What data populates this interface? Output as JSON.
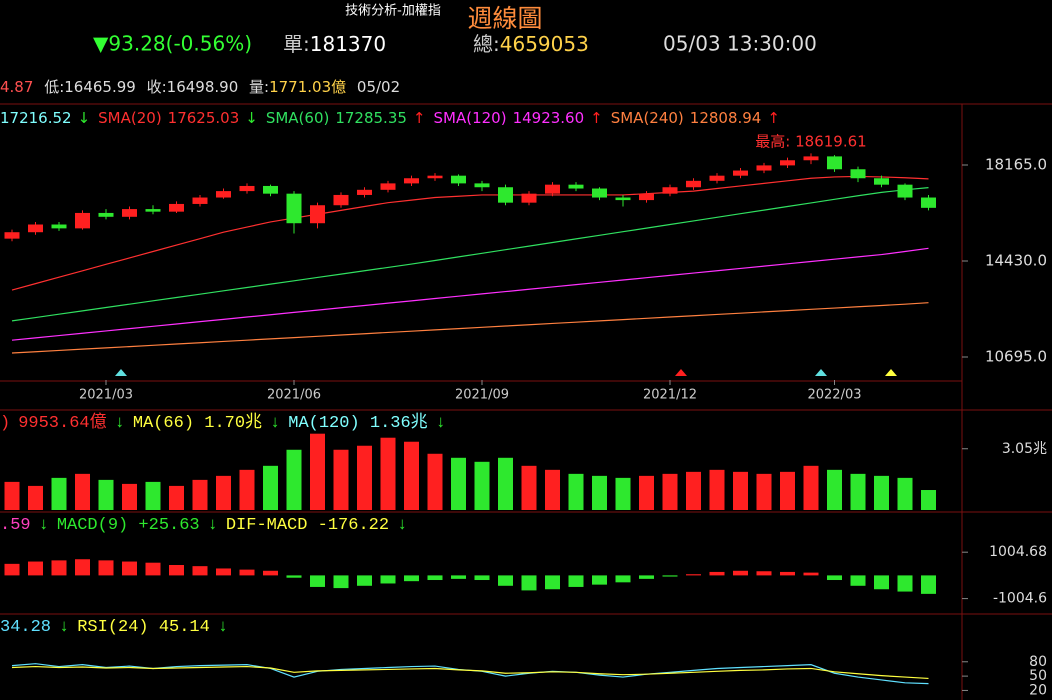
{
  "header": {
    "subtitle": "技術分析-加權指",
    "title": "週線圖",
    "change": "▼93.28(-0.56%)",
    "unit_label": "單:",
    "unit": "181370",
    "total_label": "總:",
    "total": "4659053",
    "datetime": "05/03 13:30:00"
  },
  "quote": {
    "high_partial": "4.87",
    "low_label": "低:",
    "low": "16465.99",
    "close_label": "收:",
    "close": "16498.90",
    "amount_label": "量:",
    "amount": "1771.03億",
    "date": "05/02"
  },
  "chart_data": [
    {
      "type": "candlestick",
      "categories": [
        null,
        null,
        null,
        null,
        "2021/03",
        null,
        null,
        null,
        null,
        null,
        null,
        null,
        "2021/06",
        null,
        null,
        null,
        null,
        null,
        null,
        null,
        "2021/09",
        null,
        null,
        null,
        null,
        null,
        null,
        null,
        "2021/12",
        null,
        null,
        null,
        null,
        null,
        null,
        "2022/03",
        null,
        null,
        null,
        null
      ],
      "open": [
        15300,
        15550,
        15850,
        15700,
        16300,
        16150,
        16450,
        16350,
        16650,
        16900,
        17150,
        17350,
        17050,
        15900,
        16600,
        17000,
        17200,
        17450,
        17650,
        17750,
        17450,
        17300,
        16700,
        17050,
        17400,
        17250,
        16900,
        16800,
        17050,
        17300,
        17550,
        17750,
        17950,
        18150,
        18350,
        18500,
        18000,
        17650,
        17400,
        16900
      ],
      "high": [
        15650,
        15950,
        15950,
        16400,
        16450,
        16550,
        16600,
        16750,
        17000,
        17250,
        17450,
        17400,
        17150,
        16700,
        17100,
        17300,
        17550,
        17750,
        17850,
        17800,
        17550,
        17400,
        17150,
        17500,
        17500,
        17300,
        17000,
        17150,
        17400,
        17650,
        17850,
        18050,
        18250,
        18450,
        18619.61,
        18550,
        18100,
        17750,
        17450,
        17000
      ],
      "low": [
        15200,
        15450,
        15600,
        15650,
        16050,
        16050,
        16250,
        16300,
        16550,
        16850,
        17050,
        16950,
        15500,
        15700,
        16500,
        16900,
        17100,
        17350,
        17550,
        17350,
        17150,
        16600,
        16600,
        16950,
        17150,
        16800,
        16550,
        16700,
        16950,
        17200,
        17450,
        17650,
        17850,
        18050,
        18200,
        17900,
        17500,
        17300,
        16800,
        16400
      ],
      "close": [
        15550,
        15850,
        15700,
        16300,
        16150,
        16450,
        16350,
        16650,
        16900,
        17150,
        17350,
        17050,
        15900,
        16600,
        17000,
        17200,
        17450,
        17650,
        17750,
        17450,
        17300,
        16700,
        17050,
        17400,
        17250,
        16900,
        16800,
        17050,
        17300,
        17550,
        17750,
        17950,
        18150,
        18350,
        18500,
        18000,
        17650,
        17400,
        16900,
        16498.9
      ],
      "up_color": "#ff2020",
      "down_color": "#2ee82e",
      "ylim": [
        9800,
        20500
      ],
      "yticks": [
        {
          "value": 18165,
          "label": "18165.0"
        },
        {
          "value": 14430,
          "label": "14430.0"
        },
        {
          "value": 10695,
          "label": "10695.0"
        }
      ],
      "legend_lead": [
        {
          "text": "17216.52",
          "color": "#80ffff"
        },
        {
          "text": "↓",
          "color": "#2ee82e"
        }
      ],
      "series": [
        {
          "name": "SMA(20)",
          "label": "17625.03",
          "trend": "↓",
          "color": "#ff3030",
          "values": [
            13300,
            13550,
            13800,
            14050,
            14300,
            14550,
            14800,
            15050,
            15300,
            15550,
            15750,
            15950,
            16100,
            16250,
            16400,
            16550,
            16700,
            16800,
            16900,
            16950,
            17000,
            17000,
            17000,
            17000,
            17000,
            17000,
            17000,
            17050,
            17100,
            17150,
            17250,
            17350,
            17450,
            17550,
            17650,
            17700,
            17720,
            17700,
            17670,
            17625.03
          ]
        },
        {
          "name": "SMA(60)",
          "label": "17285.35",
          "trend": "↑",
          "color": "#30e060",
          "values": [
            12100,
            12230,
            12360,
            12490,
            12620,
            12750,
            12880,
            13010,
            13140,
            13270,
            13400,
            13530,
            13660,
            13790,
            13920,
            14050,
            14180,
            14310,
            14450,
            14590,
            14730,
            14870,
            15010,
            15150,
            15290,
            15430,
            15570,
            15710,
            15850,
            15990,
            16130,
            16270,
            16410,
            16550,
            16690,
            16830,
            16970,
            17100,
            17200,
            17285.35
          ]
        },
        {
          "name": "SMA(120)",
          "label": "14923.60",
          "trend": "↑",
          "color": "#ff30ff",
          "values": [
            11350,
            11440,
            11530,
            11620,
            11710,
            11800,
            11890,
            11980,
            12070,
            12160,
            12250,
            12340,
            12430,
            12520,
            12610,
            12700,
            12790,
            12880,
            12970,
            13060,
            13150,
            13240,
            13330,
            13420,
            13510,
            13600,
            13690,
            13780,
            13870,
            13960,
            14050,
            14140,
            14230,
            14320,
            14410,
            14500,
            14590,
            14680,
            14800,
            14923.6
          ]
        },
        {
          "name": "SMA(240)",
          "label": "12808.94",
          "trend": "↑",
          "color": "#ff8040",
          "values": [
            10850,
            10900,
            10950,
            11000,
            11050,
            11100,
            11150,
            11200,
            11250,
            11300,
            11350,
            11400,
            11450,
            11500,
            11550,
            11600,
            11650,
            11700,
            11750,
            11800,
            11850,
            11900,
            11950,
            12000,
            12050,
            12100,
            12150,
            12200,
            12250,
            12300,
            12350,
            12400,
            12450,
            12500,
            12550,
            12600,
            12650,
            12700,
            12750,
            12808.94
          ]
        }
      ],
      "annotation": "最高: 18619.61"
    },
    {
      "type": "bar",
      "values": [
        14000,
        12000,
        16000,
        18000,
        15000,
        13000,
        14000,
        12000,
        15000,
        17000,
        20000,
        22000,
        30000,
        38000,
        30000,
        32000,
        36000,
        34000,
        28000,
        26000,
        24000,
        26000,
        22000,
        20000,
        18000,
        17000,
        16000,
        17000,
        18000,
        19000,
        20000,
        19000,
        18000,
        19000,
        22000,
        20000,
        18000,
        17000,
        16000,
        9953.64
      ],
      "up_color": "#ff2020",
      "down_color": "#2ee82e",
      "ylim": [
        0,
        49800
      ],
      "yticks": [
        {
          "value": 30500,
          "label": "3.05兆"
        }
      ],
      "legend_items": [
        {
          "text": ")",
          "color": "#ff3030"
        },
        {
          "text": "9953.64億",
          "color": "#ff3030"
        },
        {
          "text": "↓",
          "color": "#2ee82e"
        },
        {
          "text": "MA(66) 1.70兆",
          "color": "#ffff40"
        },
        {
          "text": "↓",
          "color": "#2ee82e"
        },
        {
          "text": "MA(120) 1.36兆",
          "color": "#80ffff"
        },
        {
          "text": "↓",
          "color": "#2ee82e"
        }
      ]
    },
    {
      "type": "bar",
      "values": [
        500,
        600,
        650,
        700,
        650,
        600,
        550,
        450,
        400,
        300,
        250,
        200,
        -100,
        -500,
        -550,
        -450,
        -350,
        -250,
        -200,
        -150,
        -200,
        -450,
        -650,
        -600,
        -500,
        -400,
        -300,
        -150,
        -50,
        50,
        150,
        200,
        180,
        150,
        120,
        -200,
        -450,
        -600,
        -700,
        -800
      ],
      "up_color": "#ff2020",
      "down_color": "#2ee82e",
      "ylim": [
        -1585,
        2745
      ],
      "yticks": [
        1004.68,
        -1004.6
      ],
      "legend_items": [
        {
          "text": ".59",
          "color": "#ff40c0"
        },
        {
          "text": "↓",
          "color": "#2ee82e"
        },
        {
          "text": "MACD(9)  +25.63",
          "color": "#2ee82e"
        },
        {
          "text": "↓",
          "color": "#2ee82e"
        },
        {
          "text": "DIF-MACD  -176.22",
          "color": "#ffff40"
        },
        {
          "text": "↓",
          "color": "#2ee82e"
        }
      ]
    },
    {
      "type": "line",
      "ylim": [
        0,
        180
      ],
      "yticks": [
        80,
        50,
        20
      ],
      "series": [
        {
          "color": "#60e0ff",
          "values": [
            72,
            76,
            70,
            74,
            68,
            71,
            66,
            70,
            72,
            73,
            74,
            66,
            48,
            60,
            64,
            66,
            68,
            70,
            71,
            64,
            60,
            50,
            56,
            60,
            58,
            52,
            48,
            54,
            58,
            62,
            66,
            68,
            70,
            72,
            74,
            56,
            48,
            42,
            36,
            34.28
          ]
        },
        {
          "color": "#ffff40",
          "values": [
            68,
            70,
            68,
            69,
            67,
            68,
            66,
            67,
            68,
            69,
            70,
            67,
            58,
            61,
            62,
            63,
            64,
            65,
            66,
            63,
            61,
            56,
            57,
            59,
            58,
            55,
            53,
            54,
            56,
            58,
            60,
            62,
            63,
            65,
            66,
            59,
            55,
            51,
            48,
            45.14
          ]
        }
      ],
      "legend_items": [
        {
          "text": "34.28",
          "color": "#60e0ff"
        },
        {
          "text": "↓",
          "color": "#2ee82e"
        },
        {
          "text": "RSI(24)  45.14",
          "color": "#ffff40"
        },
        {
          "text": "↓",
          "color": "#2ee82e"
        }
      ]
    }
  ]
}
